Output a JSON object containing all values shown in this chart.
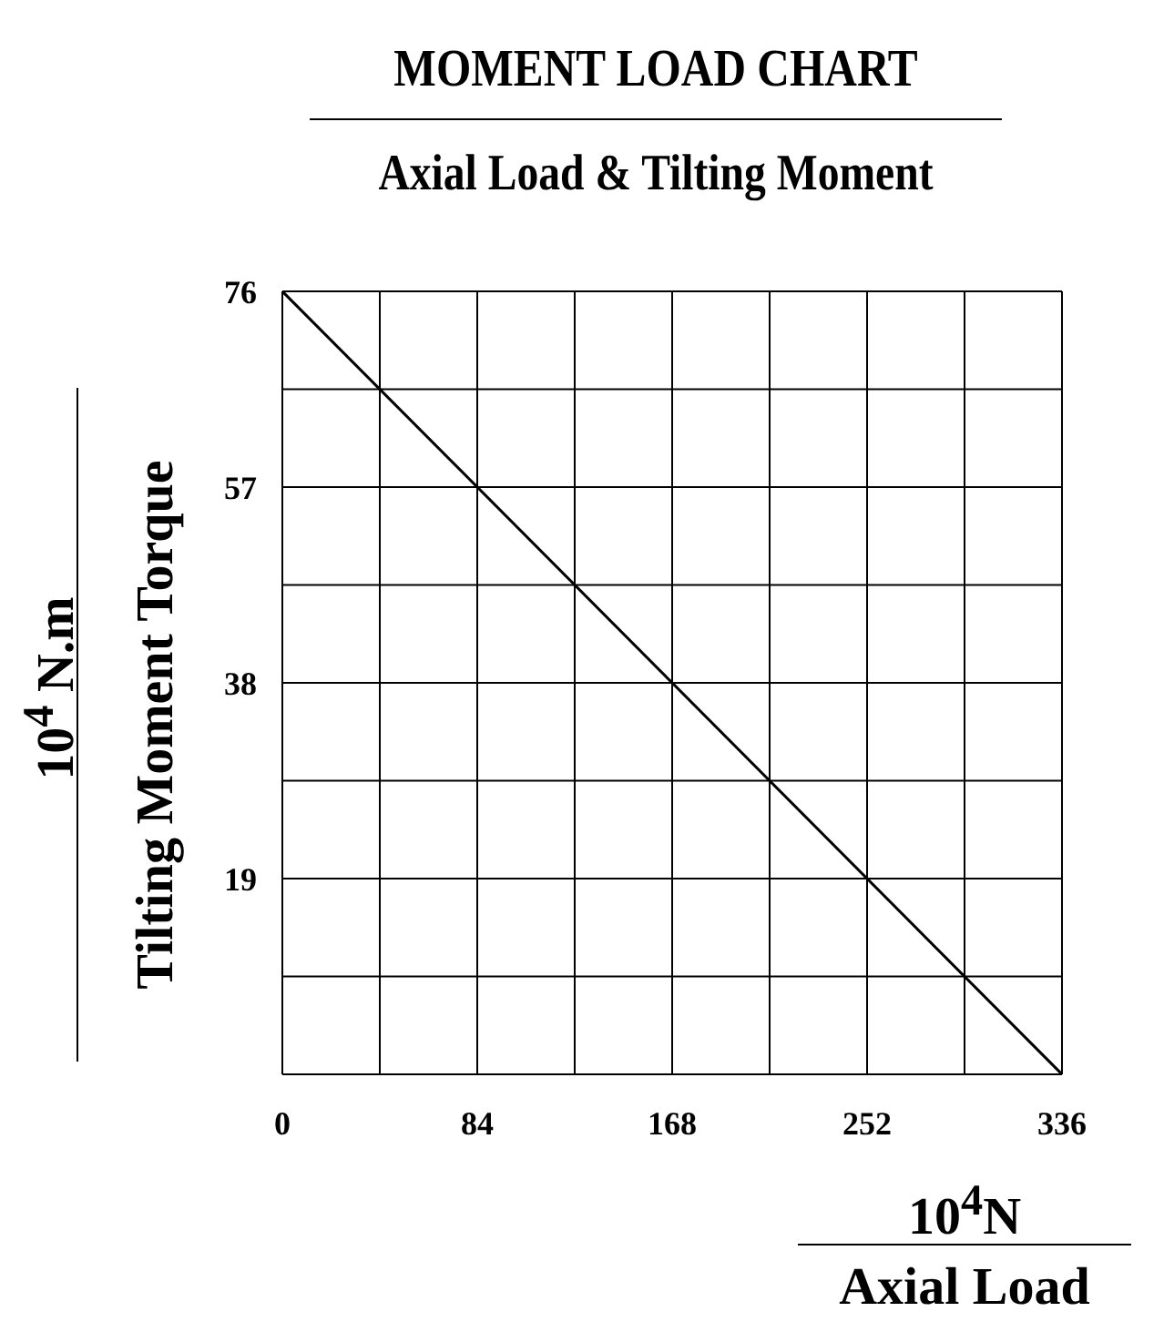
{
  "chart_data": {
    "type": "line",
    "title": "MOMENT LOAD CHART",
    "subtitle": "Axial Load & Tilting Moment",
    "xlabel": "Axial Load",
    "ylabel": "Tilting Moment Torque",
    "annotations": [
      "10$^{4}$ N.m",
      "10$^{4}$N"
    ],
    "series": [
      {
        "color": "#000000",
        "x": [
          0,
          336
        ],
        "values": [
          76,
          0
        ]
      }
    ],
    "xlim": [
      0,
      336
    ],
    "ylim": [
      0,
      76
    ],
    "xticks": [
      0,
      {
        "value": 42,
        "label": null
      },
      84,
      {
        "value": 126,
        "label": null
      },
      168,
      {
        "value": 210,
        "label": null
      },
      252,
      {
        "value": 294,
        "label": null
      },
      336
    ],
    "yticks": [
      {
        "value": 0,
        "label": null
      },
      {
        "value": 9.5,
        "label": null
      },
      19,
      {
        "value": 28.5,
        "label": null
      },
      38,
      {
        "value": 47.5,
        "label": null
      },
      57,
      {
        "value": 66.5,
        "label": null
      },
      76
    ],
    "grid": true,
    "marker": "none",
    "line_style": "solid"
  }
}
